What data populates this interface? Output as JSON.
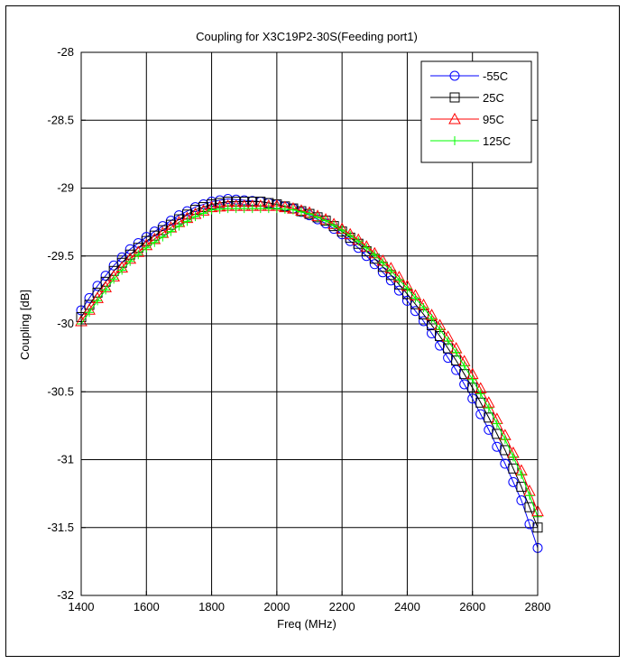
{
  "chart_data": {
    "type": "line",
    "title": "Coupling for X3C19P2-30S(Feeding port1)",
    "xlabel": "Freq (MHz)",
    "ylabel": "Coupling [dB]",
    "xlim": [
      1400,
      2800
    ],
    "ylim": [
      -32,
      -28
    ],
    "xticks": [
      1400,
      1600,
      1800,
      2000,
      2200,
      2400,
      2600,
      2800
    ],
    "yticks": [
      -32,
      -31.5,
      -31,
      -30.5,
      -30,
      -29.5,
      -29,
      -28.5,
      -28
    ],
    "xtick_labels": [
      "1400",
      "1600",
      "1800",
      "2000",
      "2200",
      "2400",
      "2600",
      "2800"
    ],
    "ytick_labels": [
      "-32",
      "-31.5",
      "-31",
      "-30.5",
      "-30",
      "-29.5",
      "-29",
      "-28.5",
      "-28"
    ],
    "grid": true,
    "legend_position": "top-right",
    "x_step": 25,
    "series": [
      {
        "name": "-55C",
        "color": "#0000ff",
        "marker": "circle",
        "anchors": [
          [
            1400,
            -29.9
          ],
          [
            1450,
            -29.72
          ],
          [
            1500,
            -29.57
          ],
          [
            1550,
            -29.45
          ],
          [
            1600,
            -29.36
          ],
          [
            1650,
            -29.28
          ],
          [
            1700,
            -29.2
          ],
          [
            1750,
            -29.14
          ],
          [
            1800,
            -29.1
          ],
          [
            1850,
            -29.08
          ],
          [
            1900,
            -29.09
          ],
          [
            1950,
            -29.1
          ],
          [
            2000,
            -29.12
          ],
          [
            2050,
            -29.15
          ],
          [
            2100,
            -29.2
          ],
          [
            2150,
            -29.26
          ],
          [
            2200,
            -29.34
          ],
          [
            2250,
            -29.44
          ],
          [
            2300,
            -29.56
          ],
          [
            2350,
            -29.68
          ],
          [
            2400,
            -29.83
          ],
          [
            2450,
            -29.98
          ],
          [
            2500,
            -30.16
          ],
          [
            2550,
            -30.34
          ],
          [
            2600,
            -30.55
          ],
          [
            2650,
            -30.78
          ],
          [
            2700,
            -31.03
          ],
          [
            2750,
            -31.3
          ],
          [
            2800,
            -31.65
          ]
        ]
      },
      {
        "name": "25C",
        "color": "#000000",
        "marker": "square",
        "anchors": [
          [
            1400,
            -29.95
          ],
          [
            1450,
            -29.77
          ],
          [
            1500,
            -29.61
          ],
          [
            1550,
            -29.49
          ],
          [
            1600,
            -29.39
          ],
          [
            1650,
            -29.31
          ],
          [
            1700,
            -29.23
          ],
          [
            1750,
            -29.16
          ],
          [
            1800,
            -29.12
          ],
          [
            1850,
            -29.1
          ],
          [
            1900,
            -29.1
          ],
          [
            1950,
            -29.1
          ],
          [
            2000,
            -29.12
          ],
          [
            2050,
            -29.15
          ],
          [
            2100,
            -29.19
          ],
          [
            2150,
            -29.24
          ],
          [
            2200,
            -29.32
          ],
          [
            2250,
            -29.41
          ],
          [
            2300,
            -29.52
          ],
          [
            2350,
            -29.64
          ],
          [
            2400,
            -29.78
          ],
          [
            2450,
            -29.93
          ],
          [
            2500,
            -30.09
          ],
          [
            2550,
            -30.27
          ],
          [
            2600,
            -30.47
          ],
          [
            2650,
            -30.69
          ],
          [
            2700,
            -30.93
          ],
          [
            2750,
            -31.2
          ],
          [
            2800,
            -31.5
          ]
        ]
      },
      {
        "name": "95C",
        "color": "#ff0000",
        "marker": "triangle",
        "anchors": [
          [
            1400,
            -29.98
          ],
          [
            1450,
            -29.81
          ],
          [
            1500,
            -29.65
          ],
          [
            1550,
            -29.52
          ],
          [
            1600,
            -29.42
          ],
          [
            1650,
            -29.33
          ],
          [
            1700,
            -29.25
          ],
          [
            1750,
            -29.19
          ],
          [
            1800,
            -29.14
          ],
          [
            1850,
            -29.13
          ],
          [
            1900,
            -29.13
          ],
          [
            1950,
            -29.13
          ],
          [
            2000,
            -29.13
          ],
          [
            2050,
            -29.15
          ],
          [
            2100,
            -29.18
          ],
          [
            2150,
            -29.23
          ],
          [
            2200,
            -29.3
          ],
          [
            2250,
            -29.38
          ],
          [
            2300,
            -29.48
          ],
          [
            2350,
            -29.59
          ],
          [
            2400,
            -29.72
          ],
          [
            2450,
            -29.86
          ],
          [
            2500,
            -30.01
          ],
          [
            2550,
            -30.18
          ],
          [
            2600,
            -30.37
          ],
          [
            2650,
            -30.58
          ],
          [
            2700,
            -30.82
          ],
          [
            2750,
            -31.08
          ],
          [
            2800,
            -31.38
          ]
        ]
      },
      {
        "name": "125C",
        "color": "#00ff00",
        "marker": "plus",
        "anchors": [
          [
            1400,
            -30.0
          ],
          [
            1450,
            -29.83
          ],
          [
            1500,
            -29.67
          ],
          [
            1550,
            -29.54
          ],
          [
            1600,
            -29.44
          ],
          [
            1650,
            -29.36
          ],
          [
            1700,
            -29.28
          ],
          [
            1750,
            -29.21
          ],
          [
            1800,
            -29.16
          ],
          [
            1850,
            -29.15
          ],
          [
            1900,
            -29.15
          ],
          [
            1950,
            -29.15
          ],
          [
            2000,
            -29.15
          ],
          [
            2050,
            -29.16
          ],
          [
            2100,
            -29.19
          ],
          [
            2150,
            -29.24
          ],
          [
            2200,
            -29.31
          ],
          [
            2250,
            -29.39
          ],
          [
            2300,
            -29.49
          ],
          [
            2350,
            -29.61
          ],
          [
            2400,
            -29.74
          ],
          [
            2450,
            -29.88
          ],
          [
            2500,
            -30.04
          ],
          [
            2550,
            -30.21
          ],
          [
            2600,
            -30.41
          ],
          [
            2650,
            -30.62
          ],
          [
            2700,
            -30.85
          ],
          [
            2750,
            -31.11
          ],
          [
            2800,
            -31.42
          ]
        ]
      }
    ]
  }
}
